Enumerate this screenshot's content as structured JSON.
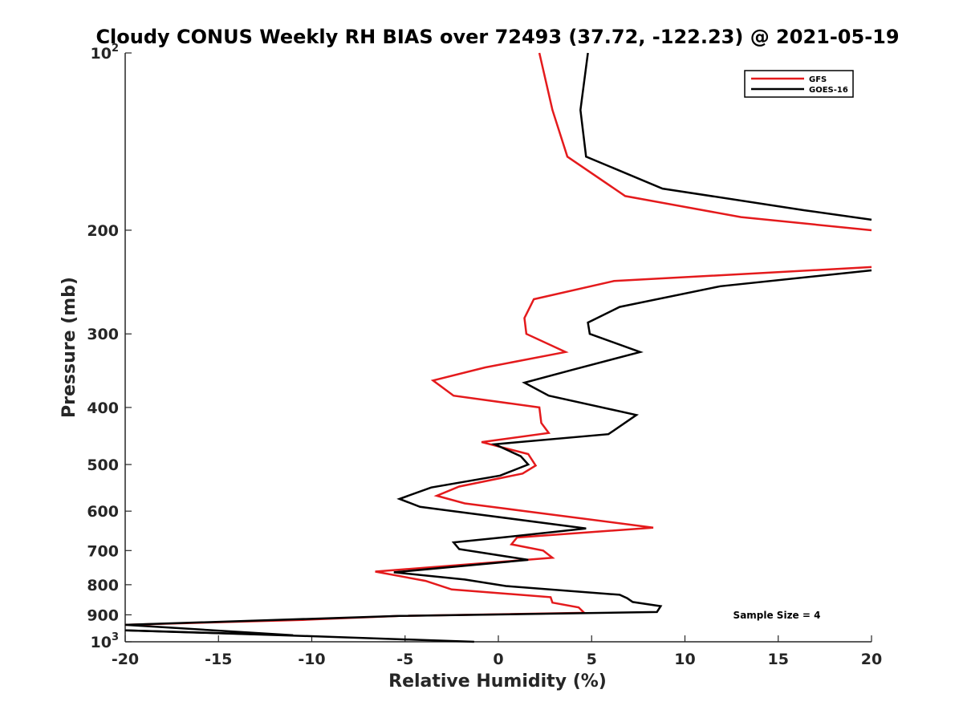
{
  "chart_data": {
    "type": "line",
    "title": "Cloudy CONUS Weekly RH BIAS over 72493 (37.72, -122.23) @ 2021-05-19",
    "xlabel": "Relative Humidity (%)",
    "ylabel": "Pressure (mb)",
    "xlim": [
      -20,
      20
    ],
    "ylim": [
      100,
      1000
    ],
    "y_scale": "log",
    "y_reversed": true,
    "grid": false,
    "legend_position": "top-right",
    "annotation": "Sample Size = 4",
    "x_ticks": [
      {
        "value": -20,
        "label": "-20"
      },
      {
        "value": -15,
        "label": "-15"
      },
      {
        "value": -10,
        "label": "-10"
      },
      {
        "value": -5,
        "label": "-5"
      },
      {
        "value": 0,
        "label": "0"
      },
      {
        "value": 5,
        "label": "5"
      },
      {
        "value": 10,
        "label": "10"
      },
      {
        "value": 15,
        "label": "15"
      },
      {
        "value": 20,
        "label": "20"
      }
    ],
    "y_ticks": [
      {
        "value": 100,
        "label": "10",
        "sup": "2"
      },
      {
        "value": 200,
        "label": "200",
        "sup": ""
      },
      {
        "value": 300,
        "label": "300",
        "sup": ""
      },
      {
        "value": 400,
        "label": "400",
        "sup": ""
      },
      {
        "value": 500,
        "label": "500",
        "sup": ""
      },
      {
        "value": 600,
        "label": "600",
        "sup": ""
      },
      {
        "value": 700,
        "label": "700",
        "sup": ""
      },
      {
        "value": 800,
        "label": "800",
        "sup": ""
      },
      {
        "value": 900,
        "label": "900",
        "sup": ""
      },
      {
        "value": 1000,
        "label": "10",
        "sup": "3"
      }
    ],
    "series": [
      {
        "name": "GFS",
        "color": "#e41a1c",
        "segments": [
          [
            [
              2.2,
              100
            ],
            [
              2.9,
              125
            ],
            [
              3.7,
              150
            ],
            [
              6.8,
              175
            ],
            [
              13,
              190
            ],
            [
              20,
              200
            ]
          ],
          [
            [
              20,
              231
            ],
            [
              6.2,
              244
            ],
            [
              1.9,
              262
            ],
            [
              1.4,
              282
            ],
            [
              1.5,
              300
            ],
            [
              3.6,
              322
            ],
            [
              -0.7,
              342
            ],
            [
              -3.5,
              360
            ],
            [
              -2.4,
              382
            ],
            [
              2.2,
              400
            ],
            [
              2.3,
              425
            ],
            [
              2.7,
              442
            ],
            [
              -0.9,
              458
            ],
            [
              1.6,
              480
            ],
            [
              2.0,
              502
            ],
            [
              1.3,
              518
            ],
            [
              -2.1,
              545
            ],
            [
              -3.3,
              565
            ],
            [
              -1.8,
              582
            ],
            [
              8.3,
              640
            ],
            [
              1.0,
              665
            ],
            [
              0.7,
              683
            ],
            [
              2.4,
              700
            ],
            [
              2.9,
              720
            ],
            [
              -6.6,
              760
            ],
            [
              -3.9,
              788
            ],
            [
              -2.5,
              815
            ],
            [
              2.8,
              840
            ],
            [
              2.9,
              858
            ],
            [
              4.3,
              874
            ],
            [
              4.6,
              893
            ],
            [
              -5.3,
              904
            ],
            [
              -10.5,
              918
            ],
            [
              -20,
              936
            ]
          ]
        ]
      },
      {
        "name": "GOES-16",
        "color": "#000000",
        "segments": [
          [
            [
              4.8,
              100
            ],
            [
              4.4,
              125
            ],
            [
              4.7,
              150
            ],
            [
              8.8,
              170
            ],
            [
              16.4,
              185
            ],
            [
              20,
              192
            ]
          ],
          [
            [
              20,
              234
            ],
            [
              11.9,
              249
            ],
            [
              6.5,
              270
            ],
            [
              4.8,
              287
            ],
            [
              4.9,
              300
            ],
            [
              7.6,
              322
            ],
            [
              4.0,
              345
            ],
            [
              1.4,
              363
            ],
            [
              2.7,
              382
            ],
            [
              7.4,
              412
            ],
            [
              5.9,
              444
            ],
            [
              -0.2,
              462
            ],
            [
              1.2,
              484
            ],
            [
              1.6,
              500
            ],
            [
              0.1,
              522
            ],
            [
              -3.6,
              547
            ],
            [
              -5.3,
              572
            ],
            [
              -4.2,
              590
            ],
            [
              4.7,
              642
            ],
            [
              0.4,
              664
            ],
            [
              -2.4,
              678
            ],
            [
              -2.1,
              696
            ],
            [
              1.6,
              726
            ],
            [
              -5.6,
              762
            ],
            [
              -1.8,
              784
            ],
            [
              0.4,
              804
            ],
            [
              6.5,
              832
            ],
            [
              6.9,
              843
            ],
            [
              7.2,
              856
            ],
            [
              8.7,
              870
            ],
            [
              8.5,
              890
            ],
            [
              -5.3,
              904
            ],
            [
              -20,
              936
            ],
            [
              -11,
              975
            ],
            [
              -20,
              956
            ]
          ],
          [
            [
              -20,
              956
            ],
            [
              -10.2,
              978
            ],
            [
              -1.3,
              1000
            ]
          ]
        ]
      }
    ]
  }
}
